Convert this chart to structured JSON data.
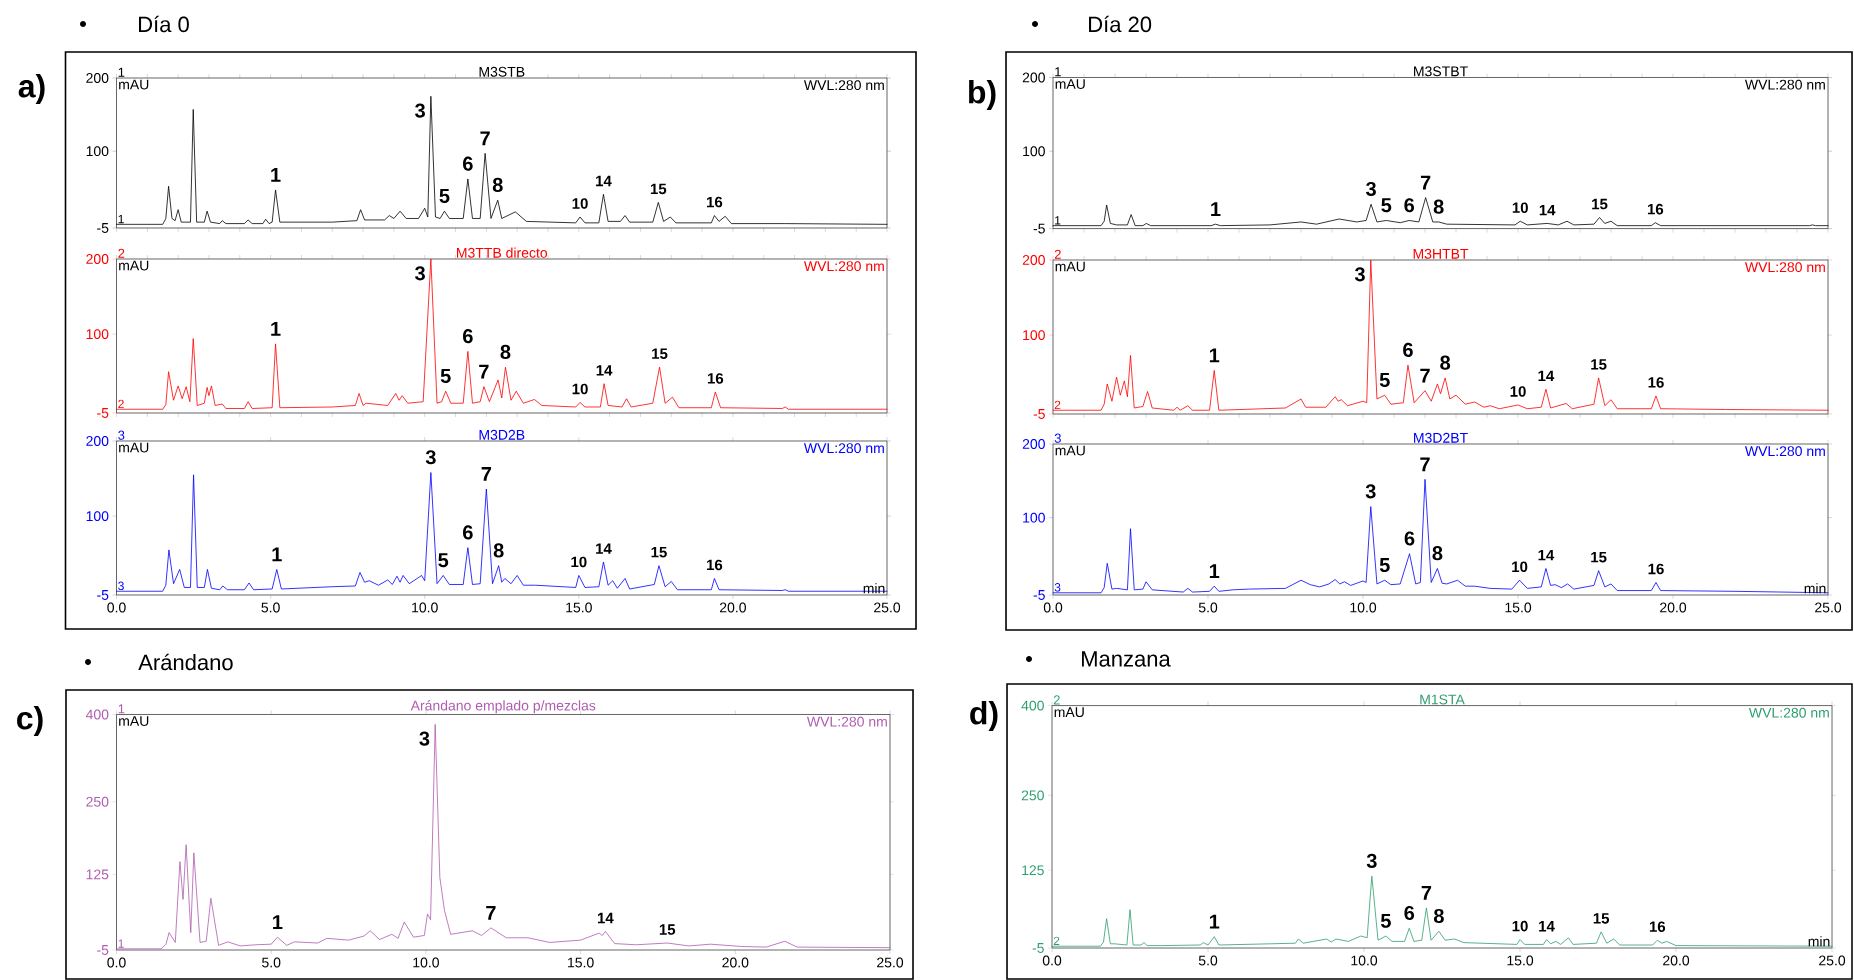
{
  "chart_data": [
    {
      "type": "line",
      "title": "M3STB",
      "subtitle": "Día 0",
      "ylabel": "mAU",
      "color": "#000000",
      "xlim": [
        0,
        25
      ],
      "ylim": [
        -5,
        200
      ],
      "tick_labels": "y",
      "yticks": [
        -5,
        100,
        200
      ],
      "x": [
        0,
        1.5,
        1.6,
        1.69,
        1.8,
        1.9,
        2.0,
        2.1,
        2.4,
        2.49,
        2.6,
        2.85,
        2.94,
        3.05,
        3.35,
        3.43,
        3.55,
        4.15,
        4.27,
        4.4,
        4.75,
        4.84,
        4.95,
        5.05,
        5.16,
        5.3,
        7.0,
        7.8,
        7.92,
        8.05,
        8.7,
        8.85,
        9.0,
        9.2,
        9.4,
        9.8,
        10.0,
        10.1,
        10.2,
        10.35,
        10.5,
        10.64,
        10.8,
        11.25,
        11.4,
        11.55,
        11.8,
        11.96,
        12.15,
        12.37,
        12.5,
        12.94,
        13.3,
        14.9,
        15.04,
        15.2,
        15.65,
        15.8,
        15.95,
        16.35,
        16.5,
        16.65,
        17.4,
        17.58,
        17.75,
        17.97,
        18.15,
        19.3,
        19.4,
        19.55,
        19.75,
        19.95,
        21.7,
        25
      ],
      "values": [
        0,
        0,
        8,
        52,
        8,
        5,
        20,
        3,
        3,
        157,
        3,
        3,
        18,
        3,
        1,
        5,
        1,
        1,
        6,
        1,
        1,
        7,
        1,
        3,
        47,
        3,
        3,
        5,
        20,
        6,
        6,
        12,
        8,
        18,
        8,
        8,
        22,
        10,
        175,
        10,
        8,
        18,
        8,
        8,
        62,
        8,
        8,
        97,
        8,
        33,
        8,
        17,
        4,
        2,
        10,
        2,
        2,
        41,
        4,
        4,
        12,
        3,
        3,
        30,
        4,
        10,
        2,
        2,
        12,
        4,
        11,
        1,
        1,
        0
      ],
      "annotations": [
        "1",
        "WVL:280 nm",
        "a)",
        {
          "text": "1",
          "x": 0,
          "y": 0
        },
        {
          "text": "1",
          "x": 5.16,
          "y": 47
        },
        {
          "text": "3",
          "x": 10.2,
          "y": 175
        },
        {
          "text": "5",
          "x": 10.64,
          "y": 18
        },
        {
          "text": "6",
          "x": 11.4,
          "y": 62
        },
        {
          "text": "7",
          "x": 11.96,
          "y": 97
        },
        {
          "text": "8",
          "x": 12.37,
          "y": 33
        },
        {
          "text": "10",
          "x": 15.04,
          "y": 10
        },
        {
          "text": "14",
          "x": 15.8,
          "y": 41
        },
        {
          "text": "15",
          "x": 17.58,
          "y": 30
        },
        {
          "text": "16",
          "x": 19.4,
          "y": 12
        }
      ]
    },
    {
      "type": "line",
      "title": "M3TTB directo",
      "ylabel": "mAU",
      "color": "#ff0000",
      "xlim": [
        0,
        25
      ],
      "ylim": [
        -5,
        200
      ],
      "tick_labels": "y",
      "yticks": [
        -5,
        100,
        200
      ],
      "x": [
        0,
        1.5,
        1.6,
        1.69,
        1.85,
        2.0,
        2.13,
        2.26,
        2.38,
        2.49,
        2.62,
        2.85,
        2.94,
        3.0,
        3.08,
        3.2,
        3.43,
        3.55,
        4.15,
        4.27,
        4.4,
        5.05,
        5.16,
        5.3,
        7.0,
        7.75,
        7.87,
        8.0,
        8.1,
        8.8,
        9.06,
        9.17,
        9.27,
        9.45,
        9.95,
        10.2,
        10.4,
        10.55,
        10.68,
        10.85,
        11.25,
        11.4,
        11.55,
        11.8,
        11.92,
        12.1,
        12.38,
        12.5,
        12.62,
        12.8,
        12.97,
        13.2,
        13.56,
        13.8,
        14.9,
        15.04,
        15.2,
        15.7,
        15.82,
        15.95,
        16.4,
        16.55,
        16.7,
        17.4,
        17.62,
        17.8,
        18.04,
        18.25,
        19.3,
        19.43,
        19.6,
        21.6,
        21.7,
        21.8,
        25
      ],
      "values": [
        0,
        0,
        6,
        50,
        12,
        31,
        14,
        30,
        10,
        94,
        5,
        8,
        29,
        18,
        31,
        5,
        7,
        1,
        1,
        10,
        1,
        2,
        87,
        2,
        3,
        5,
        21,
        5,
        8,
        5,
        21,
        12,
        18,
        8,
        10,
        200,
        8,
        10,
        24,
        8,
        8,
        77,
        8,
        10,
        30,
        10,
        39,
        15,
        56,
        12,
        24,
        8,
        13,
        5,
        3,
        9,
        3,
        3,
        34,
        5,
        3,
        14,
        3,
        8,
        56,
        8,
        16,
        2,
        2,
        23,
        2,
        1,
        3,
        0,
        0
      ],
      "annotations": [
        "2",
        "WVL:280 nm",
        {
          "text": "2",
          "x": 0,
          "y": 0
        },
        {
          "text": "1",
          "x": 5.16,
          "y": 87
        },
        {
          "text": "3",
          "x": 10.2,
          "y": 200
        },
        {
          "text": "5",
          "x": 10.68,
          "y": 24
        },
        {
          "text": "6",
          "x": 11.4,
          "y": 77
        },
        {
          "text": "7",
          "x": 11.92,
          "y": 30
        },
        {
          "text": "8",
          "x": 12.62,
          "y": 56
        },
        {
          "text": "10",
          "x": 15.04,
          "y": 9
        },
        {
          "text": "14",
          "x": 15.82,
          "y": 34
        },
        {
          "text": "15",
          "x": 17.62,
          "y": 56
        },
        {
          "text": "16",
          "x": 19.43,
          "y": 23
        }
      ]
    },
    {
      "type": "line",
      "title": "M3D2B",
      "ylabel": "mAU",
      "xlabel": "min",
      "color": "#0000ff",
      "xlim": [
        0,
        25
      ],
      "ylim": [
        -5,
        200
      ],
      "xticks": [
        {
          "value": 0,
          "label": "0.0"
        },
        {
          "value": 5,
          "label": "5.0"
        },
        {
          "value": 10,
          "label": "10.0"
        },
        {
          "value": 15,
          "label": "15.0"
        },
        {
          "value": 20,
          "label": "20.0"
        },
        {
          "value": 25,
          "label": "25.0"
        }
      ],
      "yticks": [
        -5,
        100,
        200
      ],
      "x": [
        0,
        1.5,
        1.6,
        1.7,
        1.85,
        2.05,
        2.2,
        2.4,
        2.5,
        2.62,
        2.85,
        2.95,
        3.08,
        3.35,
        3.45,
        3.6,
        4.15,
        4.3,
        4.45,
        5.05,
        5.2,
        5.35,
        7.0,
        7.75,
        7.9,
        8.05,
        8.2,
        8.5,
        8.8,
        8.95,
        9.1,
        9.2,
        9.3,
        9.5,
        9.9,
        10.0,
        10.2,
        10.4,
        10.6,
        10.8,
        11.25,
        11.4,
        11.55,
        11.8,
        12.0,
        12.2,
        12.4,
        12.5,
        12.6,
        12.8,
        13.0,
        13.2,
        13.6,
        14.9,
        15.0,
        15.2,
        15.65,
        15.8,
        15.95,
        16.1,
        16.25,
        16.5,
        16.65,
        17.45,
        17.6,
        17.8,
        18.0,
        18.2,
        19.3,
        19.4,
        19.55,
        21.6,
        21.7,
        21.8,
        25
      ],
      "values": [
        0,
        0,
        8,
        55,
        10,
        29,
        5,
        5,
        155,
        5,
        5,
        29,
        4,
        2,
        7,
        2,
        2,
        11,
        2,
        3,
        29,
        3,
        6,
        7,
        25,
        12,
        14,
        8,
        15,
        9,
        20,
        12,
        21,
        10,
        21,
        14,
        158,
        10,
        21,
        9,
        9,
        58,
        9,
        10,
        136,
        10,
        34,
        12,
        17,
        10,
        21,
        8,
        8,
        5,
        21,
        5,
        6,
        39,
        8,
        14,
        4,
        17,
        3,
        9,
        34,
        6,
        13,
        2,
        2,
        17,
        2,
        1,
        2,
        0,
        0
      ],
      "annotations": [
        "3",
        "WVL:280 nm",
        {
          "text": "3",
          "x": 0,
          "y": 0
        },
        {
          "text": "1",
          "x": 5.2,
          "y": 29
        },
        {
          "text": "3",
          "x": 10.2,
          "y": 158
        },
        {
          "text": "5",
          "x": 10.6,
          "y": 21
        },
        {
          "text": "6",
          "x": 11.4,
          "y": 58
        },
        {
          "text": "7",
          "x": 12.0,
          "y": 136
        },
        {
          "text": "8",
          "x": 12.4,
          "y": 34
        },
        {
          "text": "10",
          "x": 15.0,
          "y": 21
        },
        {
          "text": "14",
          "x": 15.8,
          "y": 39
        },
        {
          "text": "15",
          "x": 17.6,
          "y": 34
        },
        {
          "text": "16",
          "x": 19.4,
          "y": 17
        }
      ]
    },
    {
      "type": "line",
      "title": "M3STBT",
      "subtitle": "Día 20",
      "ylabel": "mAU",
      "color": "#000000",
      "xlim": [
        0,
        25
      ],
      "ylim": [
        -5,
        200
      ],
      "tick_labels": "y",
      "yticks": [
        -5,
        100,
        200
      ],
      "x": [
        0,
        1.55,
        1.65,
        1.73,
        1.85,
        2.05,
        2.4,
        2.52,
        2.65,
        2.9,
        3.01,
        3.15,
        5.1,
        5.24,
        5.4,
        7.0,
        8.0,
        8.5,
        9.23,
        9.8,
        10.1,
        10.26,
        10.45,
        10.75,
        11.2,
        11.49,
        11.8,
        12.02,
        12.25,
        12.44,
        12.7,
        14.9,
        15.07,
        15.3,
        15.94,
        16.3,
        16.58,
        16.8,
        17.45,
        17.63,
        17.8,
        18.0,
        18.2,
        19.3,
        19.43,
        19.6,
        24.4,
        24.5,
        24.6,
        25
      ],
      "values": [
        -1,
        -1,
        5,
        27,
        2,
        0,
        0,
        14,
        -1,
        -1,
        2,
        -1,
        -1,
        1,
        -1,
        0,
        4,
        1,
        8,
        4,
        6,
        28,
        4,
        6,
        3,
        6,
        4,
        37,
        4,
        4,
        1,
        0,
        5,
        0,
        2,
        0,
        5,
        0,
        1,
        10,
        2,
        5,
        -1,
        -1,
        3,
        -1,
        -1,
        0,
        -1,
        -1
      ],
      "annotations": [
        "1",
        "WVL:280 nm",
        "b)",
        {
          "text": "1",
          "x": 0,
          "y": -1
        },
        {
          "text": "1",
          "x": 5.24,
          "y": 1
        },
        {
          "text": "3",
          "x": 10.26,
          "y": 28
        },
        {
          "text": "5",
          "x": 10.75,
          "y": 6
        },
        {
          "text": "6",
          "x": 11.49,
          "y": 6
        },
        {
          "text": "7",
          "x": 12.02,
          "y": 37
        },
        {
          "text": "8",
          "x": 12.44,
          "y": 4
        },
        {
          "text": "10",
          "x": 15.07,
          "y": 5
        },
        {
          "text": "14",
          "x": 15.94,
          "y": 2
        },
        {
          "text": "15",
          "x": 17.63,
          "y": 10
        },
        {
          "text": "16",
          "x": 19.43,
          "y": 3
        }
      ]
    },
    {
      "type": "line",
      "title": "M3HTBT",
      "ylabel": "mAU",
      "color": "#ff0000",
      "xlim": [
        0,
        25
      ],
      "ylim": [
        -5,
        200
      ],
      "tick_labels": "y",
      "yticks": [
        -5,
        100,
        200
      ],
      "x": [
        0,
        1.55,
        1.65,
        1.75,
        1.9,
        2.05,
        2.17,
        2.3,
        2.4,
        2.5,
        2.62,
        2.9,
        3.05,
        3.2,
        3.9,
        4.0,
        4.1,
        4.35,
        4.5,
        5.05,
        5.2,
        5.35,
        7.5,
        8.0,
        8.15,
        8.8,
        9.1,
        9.2,
        9.3,
        9.5,
        10.0,
        10.12,
        10.25,
        10.45,
        10.7,
        10.9,
        11.3,
        11.45,
        11.65,
        12.0,
        12.2,
        12.4,
        12.5,
        12.65,
        12.8,
        13.0,
        13.3,
        13.6,
        13.9,
        14.1,
        14.4,
        15.0,
        15.3,
        15.75,
        15.9,
        16.05,
        16.55,
        16.75,
        17.45,
        17.6,
        17.8,
        18.0,
        18.2,
        19.3,
        19.45,
        19.6,
        21.7,
        25
      ],
      "values": [
        0,
        0,
        8,
        35,
        12,
        44,
        20,
        39,
        18,
        73,
        3,
        5,
        25,
        3,
        0,
        4,
        0,
        6,
        0,
        0,
        53,
        0,
        3,
        15,
        4,
        4,
        18,
        12,
        14,
        6,
        12,
        10,
        200,
        15,
        20,
        8,
        10,
        60,
        10,
        26,
        12,
        35,
        22,
        43,
        15,
        20,
        8,
        11,
        4,
        6,
        2,
        7,
        2,
        4,
        28,
        3,
        9,
        2,
        8,
        43,
        6,
        14,
        2,
        2,
        19,
        2,
        1,
        0
      ],
      "annotations": [
        "2",
        "WVL:280 nm",
        {
          "text": "2",
          "x": 0,
          "y": 0
        },
        {
          "text": "1",
          "x": 5.2,
          "y": 53
        },
        {
          "text": "3",
          "x": 10.25,
          "y": 200
        },
        {
          "text": "5",
          "x": 10.7,
          "y": 20
        },
        {
          "text": "6",
          "x": 11.45,
          "y": 60
        },
        {
          "text": "7",
          "x": 12.0,
          "y": 26
        },
        {
          "text": "8",
          "x": 12.65,
          "y": 43
        },
        {
          "text": "10",
          "x": 15.0,
          "y": 7
        },
        {
          "text": "14",
          "x": 15.9,
          "y": 28
        },
        {
          "text": "15",
          "x": 17.6,
          "y": 43
        },
        {
          "text": "16",
          "x": 19.45,
          "y": 19
        }
      ]
    },
    {
      "type": "line",
      "title": "M3D2BT",
      "ylabel": "mAU",
      "xlabel": "min",
      "color": "#0000ff",
      "xlim": [
        0,
        25
      ],
      "ylim": [
        -5,
        200
      ],
      "xticks": [
        {
          "value": 0,
          "label": "0.0"
        },
        {
          "value": 5,
          "label": "5.0"
        },
        {
          "value": 10,
          "label": "10.0"
        },
        {
          "value": 15,
          "label": "15.0"
        },
        {
          "value": 20,
          "label": "20.0"
        },
        {
          "value": 25,
          "label": "25.0"
        }
      ],
      "yticks": [
        -5,
        100,
        200
      ],
      "x": [
        0,
        1.55,
        1.65,
        1.75,
        1.9,
        2.05,
        2.4,
        2.5,
        2.62,
        2.9,
        3.0,
        3.2,
        4.2,
        4.35,
        4.5,
        5.05,
        5.2,
        5.35,
        5.8,
        6.3,
        7.5,
        8.0,
        8.3,
        8.6,
        8.9,
        9.1,
        9.25,
        9.4,
        9.6,
        10.0,
        10.1,
        10.25,
        10.45,
        10.7,
        10.9,
        11.2,
        11.5,
        11.7,
        11.85,
        12.0,
        12.2,
        12.4,
        12.55,
        12.7,
        13.05,
        13.3,
        13.6,
        14.1,
        14.8,
        15.05,
        15.3,
        15.75,
        15.9,
        16.05,
        16.2,
        16.4,
        16.6,
        16.8,
        17.45,
        17.6,
        17.8,
        18.0,
        18.2,
        19.3,
        19.45,
        19.6,
        22.0,
        25
      ],
      "values": [
        -2,
        -2,
        5,
        38,
        3,
        4,
        2,
        85,
        2,
        3,
        13,
        2,
        -1,
        4,
        -1,
        0,
        7,
        0,
        2,
        3,
        4,
        15,
        9,
        6,
        10,
        16,
        10,
        13,
        8,
        14,
        12,
        115,
        10,
        15,
        9,
        10,
        51,
        10,
        12,
        152,
        12,
        31,
        11,
        10,
        15,
        7,
        7,
        4,
        3,
        15,
        4,
        6,
        31,
        8,
        9,
        5,
        10,
        3,
        8,
        28,
        6,
        10,
        1,
        1,
        12,
        1,
        0,
        -2
      ],
      "annotations": [
        "3",
        "WVL:280 nm",
        {
          "text": "3",
          "x": 0,
          "y": -2
        },
        {
          "text": "1",
          "x": 5.2,
          "y": 7
        },
        {
          "text": "3",
          "x": 10.25,
          "y": 115
        },
        {
          "text": "5",
          "x": 10.7,
          "y": 15
        },
        {
          "text": "6",
          "x": 11.5,
          "y": 51
        },
        {
          "text": "7",
          "x": 12.0,
          "y": 152
        },
        {
          "text": "8",
          "x": 12.4,
          "y": 31
        },
        {
          "text": "10",
          "x": 15.05,
          "y": 15
        },
        {
          "text": "14",
          "x": 15.9,
          "y": 31
        },
        {
          "text": "15",
          "x": 17.6,
          "y": 28
        },
        {
          "text": "16",
          "x": 19.45,
          "y": 12
        }
      ]
    },
    {
      "type": "line",
      "title": "Arándano emplado p/mezclas",
      "subtitle": "Arándano",
      "ylabel": "mAU",
      "color": "#b05cb0",
      "xlim": [
        0,
        25
      ],
      "ylim": [
        -5,
        400
      ],
      "xticks": [
        {
          "value": 0,
          "label": "0.0"
        },
        {
          "value": 5,
          "label": "5.0"
        },
        {
          "value": 10,
          "label": "10.0"
        },
        {
          "value": 15,
          "label": "15.0"
        },
        {
          "value": 20,
          "label": "20.0"
        },
        {
          "value": 25,
          "label": "25.0"
        }
      ],
      "yticks": [
        -5,
        125,
        250,
        400
      ],
      "x": [
        0,
        1.45,
        1.6,
        1.7,
        1.9,
        2.05,
        2.15,
        2.25,
        2.4,
        2.5,
        2.7,
        2.9,
        3.05,
        3.3,
        3.6,
        4.0,
        4.5,
        5.0,
        5.2,
        5.5,
        5.75,
        6.5,
        6.8,
        7.5,
        8.0,
        8.2,
        8.5,
        8.9,
        9.1,
        9.3,
        9.6,
        9.95,
        10.05,
        10.15,
        10.3,
        10.45,
        10.6,
        10.8,
        11.5,
        11.8,
        12.1,
        12.6,
        13.3,
        14.0,
        15.0,
        15.6,
        15.7,
        15.8,
        16.1,
        16.8,
        17.8,
        18.5,
        19.2,
        20.2,
        21.0,
        21.6,
        22.0,
        25
      ],
      "values": [
        -3,
        -3,
        5,
        25,
        8,
        147,
        82,
        176,
        25,
        162,
        8,
        10,
        84,
        3,
        9,
        2,
        4,
        5,
        17,
        3,
        9,
        7,
        15,
        12,
        19,
        28,
        13,
        22,
        15,
        43,
        17,
        20,
        57,
        47,
        383,
        120,
        63,
        22,
        28,
        20,
        33,
        16,
        16,
        8,
        12,
        24,
        20,
        27,
        6,
        4,
        7,
        2,
        5,
        1,
        0,
        10,
        0,
        -1
      ],
      "annotations": [
        "1",
        "WVL:280 nm",
        "c)",
        {
          "text": "1",
          "x": 0,
          "y": -3
        },
        {
          "text": "1",
          "x": 5.2,
          "y": 17
        },
        {
          "text": "3",
          "x": 10.3,
          "y": 383
        },
        {
          "text": "7",
          "x": 12.1,
          "y": 33
        },
        {
          "text": "14",
          "x": 15.8,
          "y": 27
        },
        {
          "text": "15",
          "x": 17.8,
          "y": 7
        }
      ]
    },
    {
      "type": "line",
      "title": "M1STA",
      "subtitle": "Manzana",
      "ylabel": "mAU",
      "xlabel": "min",
      "color": "#2e9e6e",
      "xlim": [
        0,
        25
      ],
      "ylim": [
        -5,
        400
      ],
      "xticks": [
        {
          "value": 0,
          "label": "0.0"
        },
        {
          "value": 5,
          "label": "5.0"
        },
        {
          "value": 10,
          "label": "10.0"
        },
        {
          "value": 15,
          "label": "15.0"
        },
        {
          "value": 20,
          "label": "20.0"
        },
        {
          "value": 25,
          "label": "25.0"
        }
      ],
      "yticks": [
        -5,
        125,
        250,
        400
      ],
      "x": [
        0,
        1.55,
        1.65,
        1.75,
        1.87,
        2.0,
        2.4,
        2.5,
        2.6,
        2.85,
        2.95,
        3.05,
        3.5,
        4.75,
        4.85,
        5.0,
        5.2,
        5.35,
        7.0,
        7.8,
        7.9,
        8.05,
        8.8,
        8.95,
        9.1,
        9.5,
        9.9,
        10.1,
        10.25,
        10.45,
        10.7,
        10.9,
        11.3,
        11.45,
        11.6,
        11.85,
        12.0,
        12.15,
        12.4,
        12.6,
        12.9,
        13.2,
        14.9,
        15.0,
        15.15,
        15.75,
        15.85,
        15.98,
        16.15,
        16.3,
        16.55,
        16.7,
        17.45,
        17.6,
        17.78,
        18.0,
        18.2,
        19.25,
        19.4,
        19.55,
        19.7,
        20.0,
        25
      ],
      "values": [
        -2,
        -2,
        5,
        44,
        2,
        2,
        0,
        59,
        0,
        0,
        4,
        -1,
        -1,
        0,
        4,
        0,
        14,
        0,
        2,
        3,
        10,
        3,
        10,
        5,
        10,
        6,
        15,
        12,
        115,
        8,
        15,
        6,
        6,
        28,
        6,
        8,
        62,
        8,
        23,
        8,
        10,
        4,
        1,
        9,
        1,
        1,
        9,
        2,
        6,
        1,
        12,
        1,
        3,
        22,
        3,
        10,
        0,
        0,
        8,
        3,
        6,
        -1,
        -2
      ],
      "annotations": [
        "2",
        "WVL:280 nm",
        "d)",
        {
          "text": "2",
          "x": 0,
          "y": -2
        },
        {
          "text": "1",
          "x": 5.2,
          "y": 14
        },
        {
          "text": "3",
          "x": 10.25,
          "y": 115
        },
        {
          "text": "5",
          "x": 10.7,
          "y": 15
        },
        {
          "text": "6",
          "x": 11.45,
          "y": 28
        },
        {
          "text": "7",
          "x": 12.0,
          "y": 62
        },
        {
          "text": "8",
          "x": 12.4,
          "y": 23
        },
        {
          "text": "10",
          "x": 15.0,
          "y": 9
        },
        {
          "text": "14",
          "x": 15.85,
          "y": 9
        },
        {
          "text": "15",
          "x": 17.6,
          "y": 22
        },
        {
          "text": "16",
          "x": 19.4,
          "y": 8
        }
      ]
    }
  ]
}
